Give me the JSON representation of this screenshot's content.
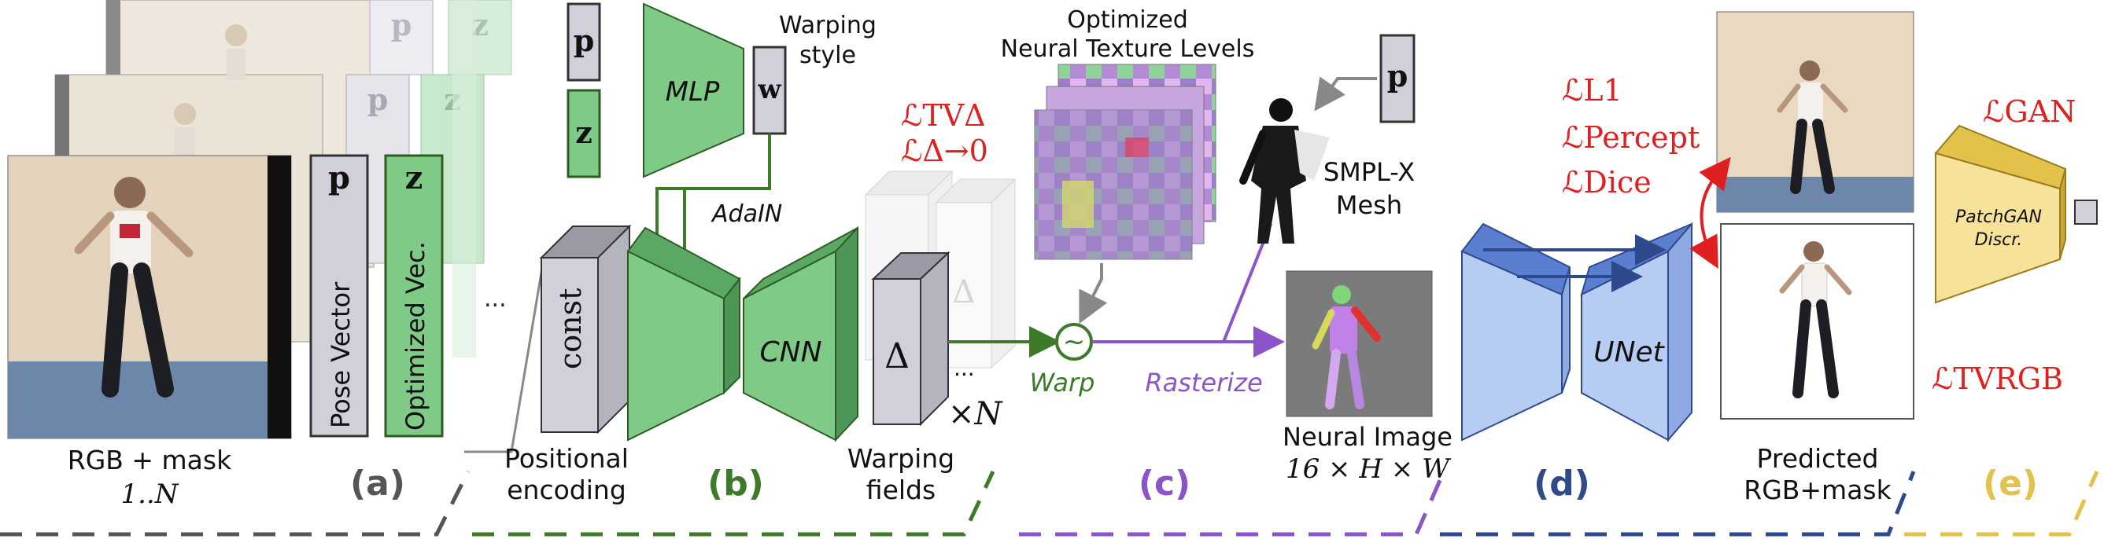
{
  "colors": {
    "green": "#7fca87",
    "green_dark": "#3d7a2a",
    "purple": "#8a55c8",
    "blue": "#5b7fd0",
    "blue_light": "#b6ccf2",
    "blue_dark": "#2f4a8c",
    "gold": "#e2c24a",
    "gold_light": "#f7e29a",
    "red": "#e02020",
    "grey": "#555555",
    "grey_box": "#d0d0da"
  },
  "section_a": {
    "stage_label": "(a)",
    "rgb_mask_label": "RGB + mask",
    "range_label": "1..N",
    "pose_symbol": "p",
    "latent_symbol": "z",
    "pose_vector_label": "Pose Vector",
    "optimized_vec_label": "Optimized Vec.",
    "ellipsis": "..."
  },
  "section_b": {
    "stage_label": "(b)",
    "pose_symbol": "p",
    "latent_symbol": "z",
    "mlp_label": "MLP",
    "w_symbol": "w",
    "warping_style_line1": "Warping",
    "warping_style_line2": "style",
    "adain_label": "AdaIN",
    "const_label": "const",
    "cnn_label": "CNN",
    "delta_symbol": "Δ",
    "times_n": "×N",
    "positional_encoding_line1": "Positional",
    "positional_encoding_line2": "encoding",
    "warping_fields_line1": "Warping",
    "warping_fields_line2": "fields",
    "ellipsis": "..."
  },
  "section_c": {
    "stage_label": "(c)",
    "texture_title_line1": "Optimized",
    "texture_title_line2": "Neural Texture Levels",
    "loss_tv_delta": "ℒTVΔ",
    "loss_delta_zero": "ℒΔ→0",
    "warp_label": "Warp",
    "warp_symbol": "~",
    "rasterize_label": "Rasterize",
    "pose_symbol": "p",
    "smplx_line1": "SMPL-X",
    "smplx_line2": "Mesh",
    "neural_image_line1": "Neural Image",
    "neural_image_line2": "16 × H × W"
  },
  "section_d": {
    "stage_label": "(d)",
    "unet_label": "UNet",
    "loss_l1": "ℒL1",
    "loss_percept": "ℒPercept",
    "loss_dice": "ℒDice",
    "predicted_line1": "Predicted",
    "predicted_line2": "RGB+mask"
  },
  "section_e": {
    "stage_label": "(e)",
    "loss_gan": "ℒGAN",
    "patchgan_line1": "PatchGAN",
    "patchgan_line2": "Discr.",
    "loss_tv_rgb": "ℒTVRGB"
  }
}
